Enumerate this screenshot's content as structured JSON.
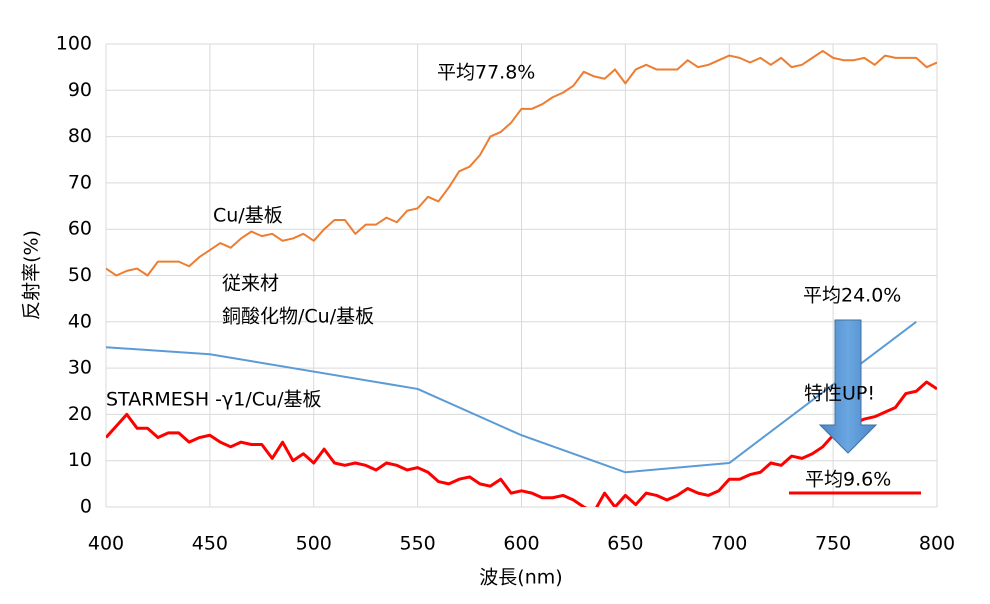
{
  "chart_data": {
    "type": "line",
    "x_label": "波長(nm)",
    "y_label": "反射率(%)",
    "xlim": [
      400,
      800
    ],
    "xticks": [
      400,
      450,
      500,
      550,
      600,
      650,
      700,
      750,
      800
    ],
    "ylim": [
      0,
      100
    ],
    "yticks": [
      0,
      10,
      20,
      30,
      40,
      50,
      60,
      70,
      80,
      90,
      100
    ],
    "grid": true,
    "series": [
      {
        "name": "Cu/基板",
        "color": "#ED7D31",
        "width": 2,
        "x": [
          400,
          405,
          410,
          415,
          420,
          425,
          430,
          435,
          440,
          445,
          450,
          455,
          460,
          465,
          470,
          475,
          480,
          485,
          490,
          495,
          500,
          505,
          510,
          515,
          520,
          525,
          530,
          535,
          540,
          545,
          550,
          555,
          560,
          565,
          570,
          575,
          580,
          585,
          590,
          595,
          600,
          605,
          610,
          615,
          620,
          625,
          630,
          635,
          640,
          645,
          650,
          655,
          660,
          665,
          670,
          675,
          680,
          685,
          690,
          695,
          700,
          705,
          710,
          715,
          720,
          725,
          730,
          735,
          740,
          745,
          750,
          755,
          760,
          765,
          770,
          775,
          780,
          785,
          790,
          795,
          800
        ],
        "values": [
          51.5,
          50,
          51,
          51.5,
          50,
          53,
          53,
          53,
          52,
          54,
          55.5,
          57,
          56,
          58,
          59.5,
          58.5,
          59,
          57.5,
          58,
          59,
          57.5,
          60,
          62,
          62,
          59,
          61,
          61,
          62.5,
          61.5,
          64,
          64.5,
          67,
          66,
          69,
          72.5,
          73.5,
          76,
          80,
          81,
          83,
          86,
          86,
          87,
          88.5,
          89.5,
          91,
          94,
          93,
          92.5,
          94.5,
          91.5,
          94.5,
          95.5,
          94.5,
          94.5,
          94.5,
          96.5,
          95,
          95.5,
          96.5,
          97.5,
          97,
          96,
          97,
          95.5,
          97,
          95,
          95.5,
          97,
          98.5,
          97,
          96.5,
          96.5,
          97,
          95.5,
          97.5,
          97,
          97,
          97,
          95,
          96
        ]
      },
      {
        "name": "従来材",
        "name2": "銅酸化物/Cu/基板",
        "color": "#5B9BD5",
        "width": 2,
        "x": [
          400,
          450,
          550,
          600,
          650,
          700,
          790
        ],
        "values": [
          34.5,
          33,
          25.5,
          15.5,
          7.5,
          9.5,
          40
        ]
      },
      {
        "name": "STARMESH -γ1/Cu/基板",
        "color": "#FF0000",
        "width": 3,
        "x": [
          400,
          405,
          410,
          415,
          420,
          425,
          430,
          435,
          440,
          445,
          450,
          455,
          460,
          465,
          470,
          475,
          480,
          485,
          490,
          495,
          500,
          505,
          510,
          515,
          520,
          525,
          530,
          535,
          540,
          545,
          550,
          555,
          560,
          565,
          570,
          575,
          580,
          585,
          590,
          595,
          600,
          605,
          610,
          615,
          620,
          625,
          630,
          635,
          640,
          645,
          650,
          655,
          660,
          665,
          670,
          675,
          680,
          685,
          690,
          695,
          700,
          705,
          710,
          715,
          720,
          725,
          730,
          735,
          740,
          745,
          750,
          755,
          760,
          765,
          770,
          775,
          780,
          785,
          790,
          795,
          800
        ],
        "values": [
          15,
          17.5,
          20,
          17,
          17,
          15,
          16,
          16,
          14,
          15,
          15.5,
          14,
          13,
          14,
          13.5,
          13.5,
          10.5,
          14,
          10,
          11.5,
          9.5,
          12.5,
          9.5,
          9,
          9.5,
          9,
          8,
          9.5,
          9,
          8,
          8.5,
          7.5,
          5.5,
          5,
          6,
          6.5,
          5,
          4.5,
          6,
          3,
          3.5,
          3,
          2,
          2,
          2.5,
          1.5,
          0,
          -1,
          3,
          0,
          2.5,
          0.5,
          3,
          2.5,
          1.5,
          2.5,
          4,
          3,
          2.5,
          3.5,
          6,
          6,
          7,
          7.5,
          9.5,
          9,
          11,
          10.5,
          11.5,
          13,
          15.5,
          17.5,
          18,
          19,
          19.5,
          20.5,
          21.5,
          24.5,
          25,
          27,
          25.5
        ]
      }
    ],
    "annotations": [
      {
        "text": "平均77.8%",
        "color": "#000000"
      },
      {
        "text": "平均24.0%",
        "color": "#000000"
      },
      {
        "text": "特性UP!",
        "color": "#000000"
      },
      {
        "text": "平均9.6%",
        "color": "#FF0000"
      }
    ]
  }
}
